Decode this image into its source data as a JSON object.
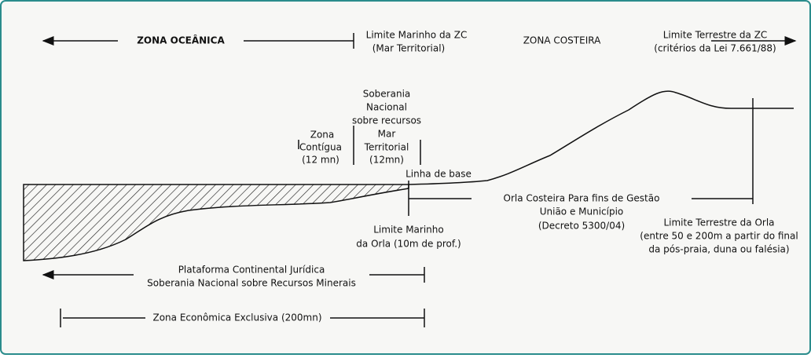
{
  "labels": {
    "zona_oceanica": "ZONA OCEÂNICA",
    "limite_marinho_zc": [
      "Limite Marinho da ZC",
      "(Mar Territorial)"
    ],
    "zona_costeira": "ZONA COSTEIRA",
    "limite_terrestre_zc": [
      "Limite Terrestre da ZC",
      "(critérios da Lei 7.661/88)"
    ],
    "soberania": [
      "Soberania",
      "Nacional",
      "sobre recursos",
      "Mar",
      "Territorial",
      "(12mn)"
    ],
    "zona_contigua": [
      "Zona",
      "Contígua",
      "(12 mn)"
    ],
    "linha_de_base": "Linha de base",
    "orla_costeira": [
      "Orla Costeira Para fins de Gestão",
      "União e Município",
      "(Decreto 5300/04)"
    ],
    "limite_terrestre_orla": [
      "Limite Terrestre da Orla",
      "(entre 50 e 200m a partir do final",
      "da pós-praia, duna ou falésia)"
    ],
    "limite_marinho_orla": [
      "Limite Marinho",
      "da Orla (10m de prof.)"
    ],
    "plataforma": [
      "Plataforma Continental Jurídica",
      "Soberania Nacional sobre Recursos Minerais"
    ],
    "zee": "Zona Econômica Exclusiva (200mn)"
  }
}
